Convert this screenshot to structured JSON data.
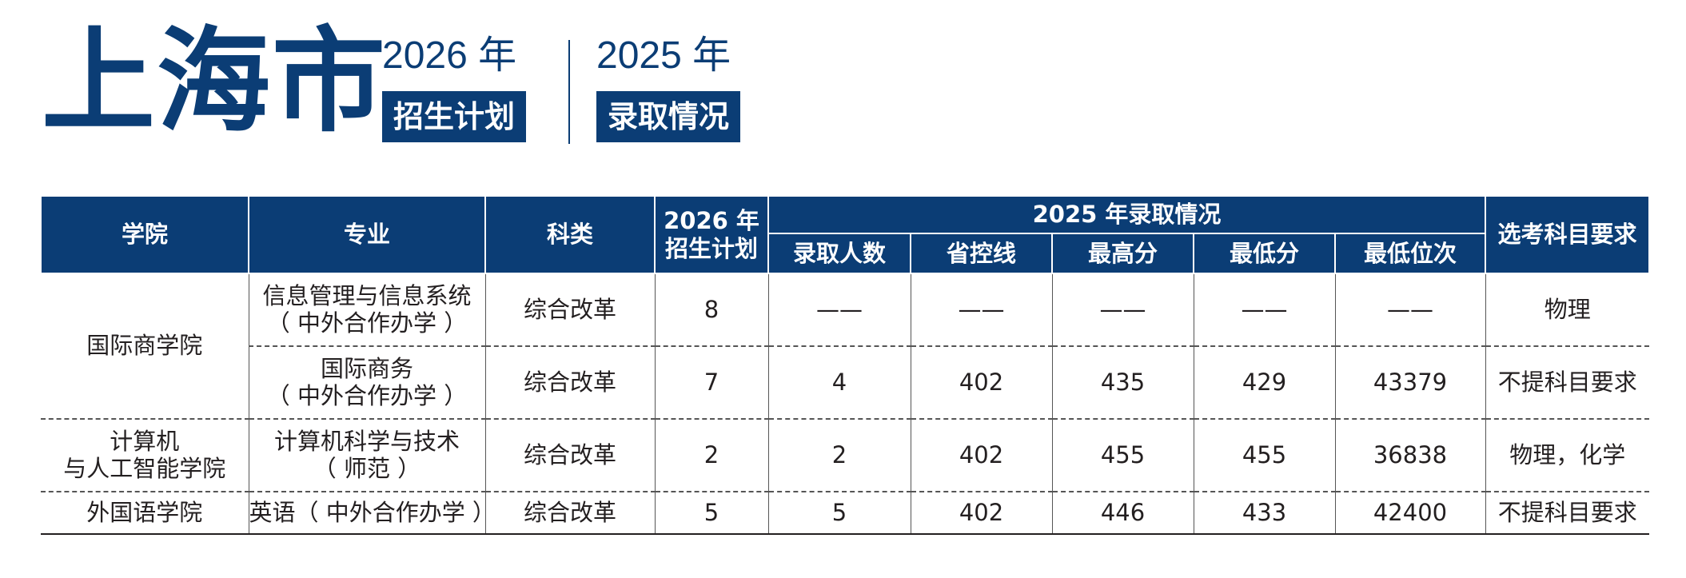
{
  "header": {
    "title": "上海市",
    "left": {
      "year": "2026 年",
      "tag": "招生计划"
    },
    "right": {
      "year": "2025 年",
      "tag": "录取情况"
    }
  },
  "table": {
    "headers": {
      "college": "学院",
      "major": "专业",
      "category": "科类",
      "plan_2026_line1": "2026 年",
      "plan_2026_line2": "招生计划",
      "admission_2025": "2025 年录取情况",
      "admitted_count": "录取人数",
      "provincial_line": "省控线",
      "highest": "最高分",
      "lowest": "最低分",
      "lowest_rank": "最低位次",
      "subject_req": "选考科目要求"
    },
    "colleges": {
      "c1": "国际商学院",
      "c2_line1": "计算机",
      "c2_line2": "与人工智能学院",
      "c3": "外国语学院"
    },
    "rows": [
      {
        "major_line1": "信息管理与信息系统",
        "major_line2": "（ 中外合作办学 ）",
        "category": "综合改革",
        "plan": "8",
        "admitted": "——",
        "provincial": "——",
        "highest": "——",
        "lowest": "——",
        "rank": "——",
        "subjects": "物理"
      },
      {
        "major_line1": "国际商务",
        "major_line2": "（ 中外合作办学 ）",
        "category": "综合改革",
        "plan": "7",
        "admitted": "4",
        "provincial": "402",
        "highest": "435",
        "lowest": "429",
        "rank": "43379",
        "subjects": "不提科目要求"
      },
      {
        "major_line1": "计算机科学与技术",
        "major_line2": "（ 师范 ）",
        "category": "综合改革",
        "plan": "2",
        "admitted": "2",
        "provincial": "402",
        "highest": "455",
        "lowest": "455",
        "rank": "36838",
        "subjects": "物理，化学"
      },
      {
        "major_line1": "英语（ 中外合作办学 ）",
        "major_line2": "",
        "category": "综合改革",
        "plan": "5",
        "admitted": "5",
        "provincial": "402",
        "highest": "446",
        "lowest": "433",
        "rank": "42400",
        "subjects": "不提科目要求"
      }
    ]
  }
}
